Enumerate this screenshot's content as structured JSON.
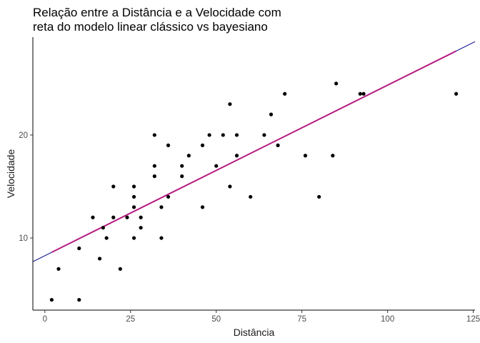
{
  "chart_data": {
    "type": "scatter",
    "title_lines": [
      "Relação entre a Distância e a Velocidade com",
      "reta do modelo linear clássico vs bayesiano"
    ],
    "xlabel": "Distância",
    "ylabel": "Velocidade",
    "xlim": [
      -3.5,
      125.5
    ],
    "ylim": [
      3,
      29.5
    ],
    "x_ticks": [
      0,
      25,
      50,
      75,
      100,
      125
    ],
    "y_ticks": [
      10,
      20
    ],
    "grid": false,
    "points": [
      {
        "x": 2,
        "y": 4
      },
      {
        "x": 4,
        "y": 7
      },
      {
        "x": 10,
        "y": 4
      },
      {
        "x": 10,
        "y": 9
      },
      {
        "x": 14,
        "y": 12
      },
      {
        "x": 16,
        "y": 8
      },
      {
        "x": 17,
        "y": 11
      },
      {
        "x": 18,
        "y": 10
      },
      {
        "x": 20,
        "y": 12
      },
      {
        "x": 20,
        "y": 15
      },
      {
        "x": 22,
        "y": 7
      },
      {
        "x": 24,
        "y": 12
      },
      {
        "x": 26,
        "y": 10
      },
      {
        "x": 26,
        "y": 13
      },
      {
        "x": 26,
        "y": 14
      },
      {
        "x": 26,
        "y": 15
      },
      {
        "x": 28,
        "y": 11
      },
      {
        "x": 28,
        "y": 12
      },
      {
        "x": 32,
        "y": 16
      },
      {
        "x": 32,
        "y": 17
      },
      {
        "x": 32,
        "y": 20
      },
      {
        "x": 34,
        "y": 10
      },
      {
        "x": 34,
        "y": 13
      },
      {
        "x": 36,
        "y": 14
      },
      {
        "x": 36,
        "y": 19
      },
      {
        "x": 40,
        "y": 16
      },
      {
        "x": 40,
        "y": 17
      },
      {
        "x": 42,
        "y": 18
      },
      {
        "x": 46,
        "y": 13
      },
      {
        "x": 46,
        "y": 19
      },
      {
        "x": 48,
        "y": 20
      },
      {
        "x": 50,
        "y": 17
      },
      {
        "x": 52,
        "y": 20
      },
      {
        "x": 54,
        "y": 15
      },
      {
        "x": 54,
        "y": 23
      },
      {
        "x": 56,
        "y": 18
      },
      {
        "x": 56,
        "y": 20
      },
      {
        "x": 60,
        "y": 14
      },
      {
        "x": 64,
        "y": 20
      },
      {
        "x": 66,
        "y": 22
      },
      {
        "x": 68,
        "y": 19
      },
      {
        "x": 70,
        "y": 24
      },
      {
        "x": 76,
        "y": 18
      },
      {
        "x": 80,
        "y": 14
      },
      {
        "x": 84,
        "y": 18
      },
      {
        "x": 85,
        "y": 25
      },
      {
        "x": 92,
        "y": 24
      },
      {
        "x": 93,
        "y": 24
      },
      {
        "x": 120,
        "y": 24
      }
    ],
    "lines": [
      {
        "label": "linear clássico",
        "color": "#00008b",
        "intercept": 8.2839,
        "slope": 0.16557,
        "x_range": [
          -3.5,
          125.5
        ]
      },
      {
        "label": "bayesiano",
        "color": "#cd1076",
        "intercept": 8.2839,
        "slope": 0.16557,
        "x_range": [
          2,
          120
        ]
      }
    ],
    "point_color": "#000000"
  }
}
